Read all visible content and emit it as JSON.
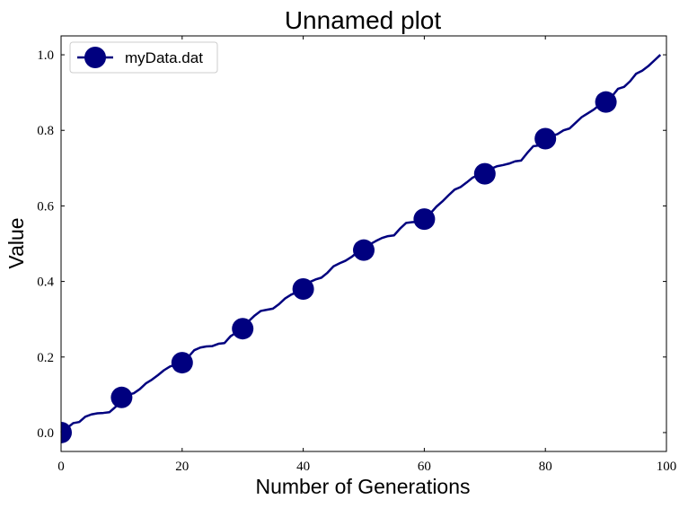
{
  "chart_data": {
    "type": "line",
    "title": "Unnamed plot",
    "xlabel": "Number of Generations",
    "ylabel": "Value",
    "xlim": [
      0,
      100
    ],
    "ylim": [
      -0.05,
      1.05
    ],
    "xticks": [
      0,
      20,
      40,
      60,
      80,
      100
    ],
    "xtick_labels": [
      "0",
      "20",
      "40",
      "60",
      "80",
      "100"
    ],
    "yticks": [
      0.0,
      0.2,
      0.4,
      0.6,
      0.8,
      1.0
    ],
    "ytick_labels": [
      "0.0",
      "0.2",
      "0.4",
      "0.6",
      "0.8",
      "1.0"
    ],
    "grid": false,
    "legend_position": "top-left",
    "series": [
      {
        "name": "myData.dat",
        "color": "#00007f",
        "marker": "circle",
        "marker_every": 10,
        "x": [
          0,
          1,
          2,
          3,
          4,
          5,
          6,
          7,
          8,
          9,
          10,
          11,
          12,
          13,
          14,
          15,
          16,
          17,
          18,
          19,
          20,
          21,
          22,
          23,
          24,
          25,
          26,
          27,
          28,
          29,
          30,
          31,
          32,
          33,
          34,
          35,
          36,
          37,
          38,
          39,
          40,
          41,
          42,
          43,
          44,
          45,
          46,
          47,
          48,
          49,
          50,
          51,
          52,
          53,
          54,
          55,
          56,
          57,
          58,
          59,
          60,
          61,
          62,
          63,
          64,
          65,
          66,
          67,
          68,
          69,
          70,
          71,
          72,
          73,
          74,
          75,
          76,
          77,
          78,
          79,
          80,
          81,
          82,
          83,
          84,
          85,
          86,
          87,
          88,
          89,
          90,
          91,
          92,
          93,
          94,
          95,
          96,
          97,
          98,
          99
        ],
        "values": [
          0.0,
          0.012,
          0.025,
          0.028,
          0.042,
          0.048,
          0.051,
          0.052,
          0.054,
          0.068,
          0.093,
          0.1,
          0.104,
          0.115,
          0.13,
          0.14,
          0.152,
          0.165,
          0.175,
          0.18,
          0.185,
          0.2,
          0.218,
          0.225,
          0.228,
          0.229,
          0.235,
          0.237,
          0.255,
          0.265,
          0.275,
          0.295,
          0.31,
          0.322,
          0.325,
          0.328,
          0.34,
          0.355,
          0.365,
          0.372,
          0.38,
          0.398,
          0.405,
          0.41,
          0.423,
          0.44,
          0.448,
          0.455,
          0.465,
          0.478,
          0.483,
          0.498,
          0.507,
          0.515,
          0.52,
          0.522,
          0.54,
          0.555,
          0.557,
          0.558,
          0.565,
          0.58,
          0.598,
          0.612,
          0.628,
          0.643,
          0.65,
          0.662,
          0.675,
          0.682,
          0.685,
          0.698,
          0.705,
          0.708,
          0.712,
          0.718,
          0.72,
          0.74,
          0.758,
          0.76,
          0.778,
          0.785,
          0.79,
          0.8,
          0.805,
          0.82,
          0.835,
          0.845,
          0.855,
          0.868,
          0.875,
          0.89,
          0.91,
          0.915,
          0.93,
          0.95,
          0.958,
          0.97,
          0.985,
          1.0
        ]
      }
    ]
  }
}
